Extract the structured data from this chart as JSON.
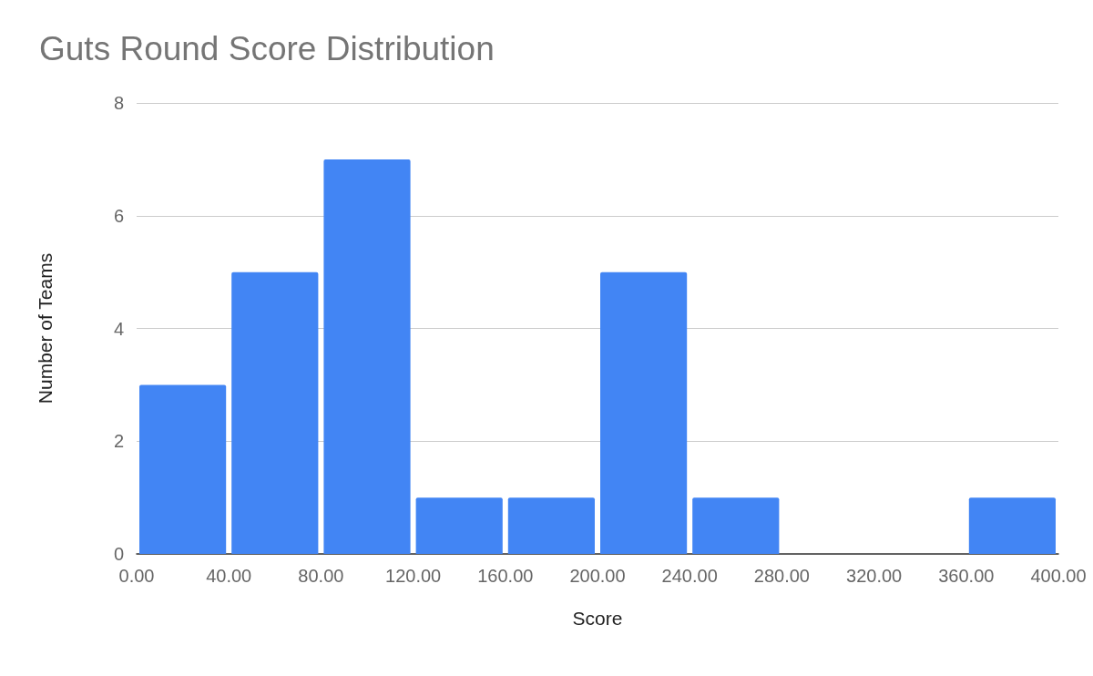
{
  "chart_data": {
    "type": "histogram",
    "title": "Guts Round Score Distribution",
    "xlabel": "Score",
    "ylabel": "Number of Teams",
    "bins": [
      0,
      40,
      80,
      120,
      160,
      200,
      240,
      280,
      320,
      360,
      400
    ],
    "values": [
      3,
      5,
      7,
      1,
      1,
      5,
      1,
      0,
      0,
      1
    ],
    "color": "#4285f4",
    "xlim": [
      0,
      400
    ],
    "xticks": [
      {
        "value": 0,
        "label": "0.00"
      },
      {
        "value": 40,
        "label": "40.00"
      },
      {
        "value": 80,
        "label": "80.00"
      },
      {
        "value": 120,
        "label": "120.00"
      },
      {
        "value": 160,
        "label": "160.00"
      },
      {
        "value": 200,
        "label": "200.00"
      },
      {
        "value": 240,
        "label": "240.00"
      },
      {
        "value": 280,
        "label": "280.00"
      },
      {
        "value": 320,
        "label": "320.00"
      },
      {
        "value": 360,
        "label": "360.00"
      },
      {
        "value": 400,
        "label": "400.00"
      }
    ],
    "ylim": [
      0,
      8
    ],
    "yticks": [
      0,
      2,
      4,
      6,
      8
    ],
    "grid": "y"
  }
}
